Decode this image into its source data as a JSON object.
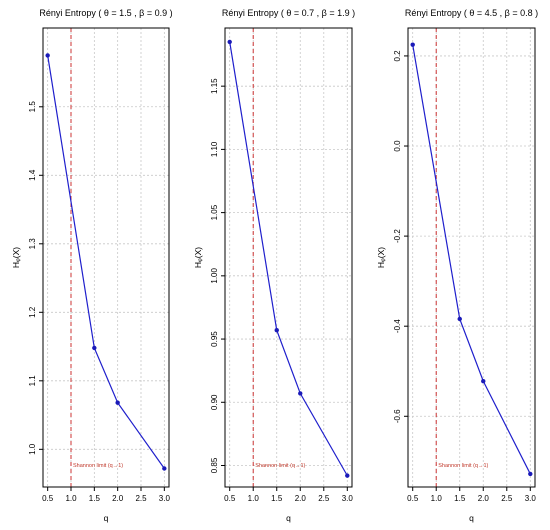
{
  "colors": {
    "line": "#1f1fcc",
    "point": "#1a1ab8",
    "refline": "#cc3333",
    "annotation": "#c0392b",
    "grid": "#c8c8c8",
    "frame": "#000000"
  },
  "chart_data": [
    {
      "type": "line",
      "title": "Rényi Entropy  ( θ = 1.5 , β = 0.9 )",
      "xlabel": "q",
      "ylabel": "Hᵩ(X)",
      "xlim": [
        0.4,
        3.1
      ],
      "ylim": [
        0.945,
        1.615
      ],
      "xticks": [
        0.5,
        1.0,
        1.5,
        2.0,
        2.5,
        3.0
      ],
      "xtick_labels": [
        "0.5",
        "1.0",
        "1.5",
        "2.0",
        "2.5",
        "3.0"
      ],
      "yticks": [
        1.0,
        1.1,
        1.2,
        1.3,
        1.4,
        1.5
      ],
      "ytick_labels": [
        "1.0",
        "1.1",
        "1.2",
        "1.3",
        "1.4",
        "1.5"
      ],
      "grid": true,
      "x": [
        0.5,
        1.5,
        2.0,
        3.0
      ],
      "series": [
        {
          "values": [
            1.575,
            1.148,
            1.068,
            0.972
          ]
        }
      ],
      "vline": {
        "x": 1.0,
        "label": "Shannon limit (q→1)"
      }
    },
    {
      "type": "line",
      "title": "Rényi Entropy  ( θ = 0.7 , β = 1.9 )",
      "xlabel": "q",
      "ylabel": "Hᵩ(X)",
      "xlim": [
        0.4,
        3.1
      ],
      "ylim": [
        0.833,
        1.196
      ],
      "xticks": [
        0.5,
        1.0,
        1.5,
        2.0,
        2.5,
        3.0
      ],
      "xtick_labels": [
        "0.5",
        "1.0",
        "1.5",
        "2.0",
        "2.5",
        "3.0"
      ],
      "yticks": [
        0.85,
        0.9,
        0.95,
        1.0,
        1.05,
        1.1,
        1.15
      ],
      "ytick_labels": [
        "0.85",
        "0.90",
        "0.95",
        "1.00",
        "1.05",
        "1.10",
        "1.15"
      ],
      "grid": true,
      "x": [
        0.5,
        1.5,
        2.0,
        3.0
      ],
      "series": [
        {
          "values": [
            1.185,
            0.957,
            0.907,
            0.842
          ]
        }
      ],
      "vline": {
        "x": 1.0,
        "label": "Shannon limit (q→1)"
      }
    },
    {
      "type": "line",
      "title": "Rényi Entropy  ( θ = 4.5 , β = 0.8 )",
      "xlabel": "q",
      "ylabel": "Hᵩ(X)",
      "xlim": [
        0.4,
        3.1
      ],
      "ylim": [
        -0.757,
        0.262
      ],
      "xticks": [
        0.5,
        1.0,
        1.5,
        2.0,
        2.5,
        3.0
      ],
      "xtick_labels": [
        "0.5",
        "1.0",
        "1.5",
        "2.0",
        "2.5",
        "3.0"
      ],
      "yticks": [
        -0.6,
        -0.4,
        -0.2,
        0.0,
        0.2
      ],
      "ytick_labels": [
        "-0.6",
        "-0.4",
        "-0.2",
        "0.0",
        "0.2"
      ],
      "grid": true,
      "x": [
        0.5,
        1.5,
        2.0,
        3.0
      ],
      "series": [
        {
          "values": [
            0.225,
            -0.384,
            -0.522,
            -0.728
          ]
        }
      ],
      "vline": {
        "x": 1.0,
        "label": "Shannon limit (q→1)"
      }
    }
  ]
}
